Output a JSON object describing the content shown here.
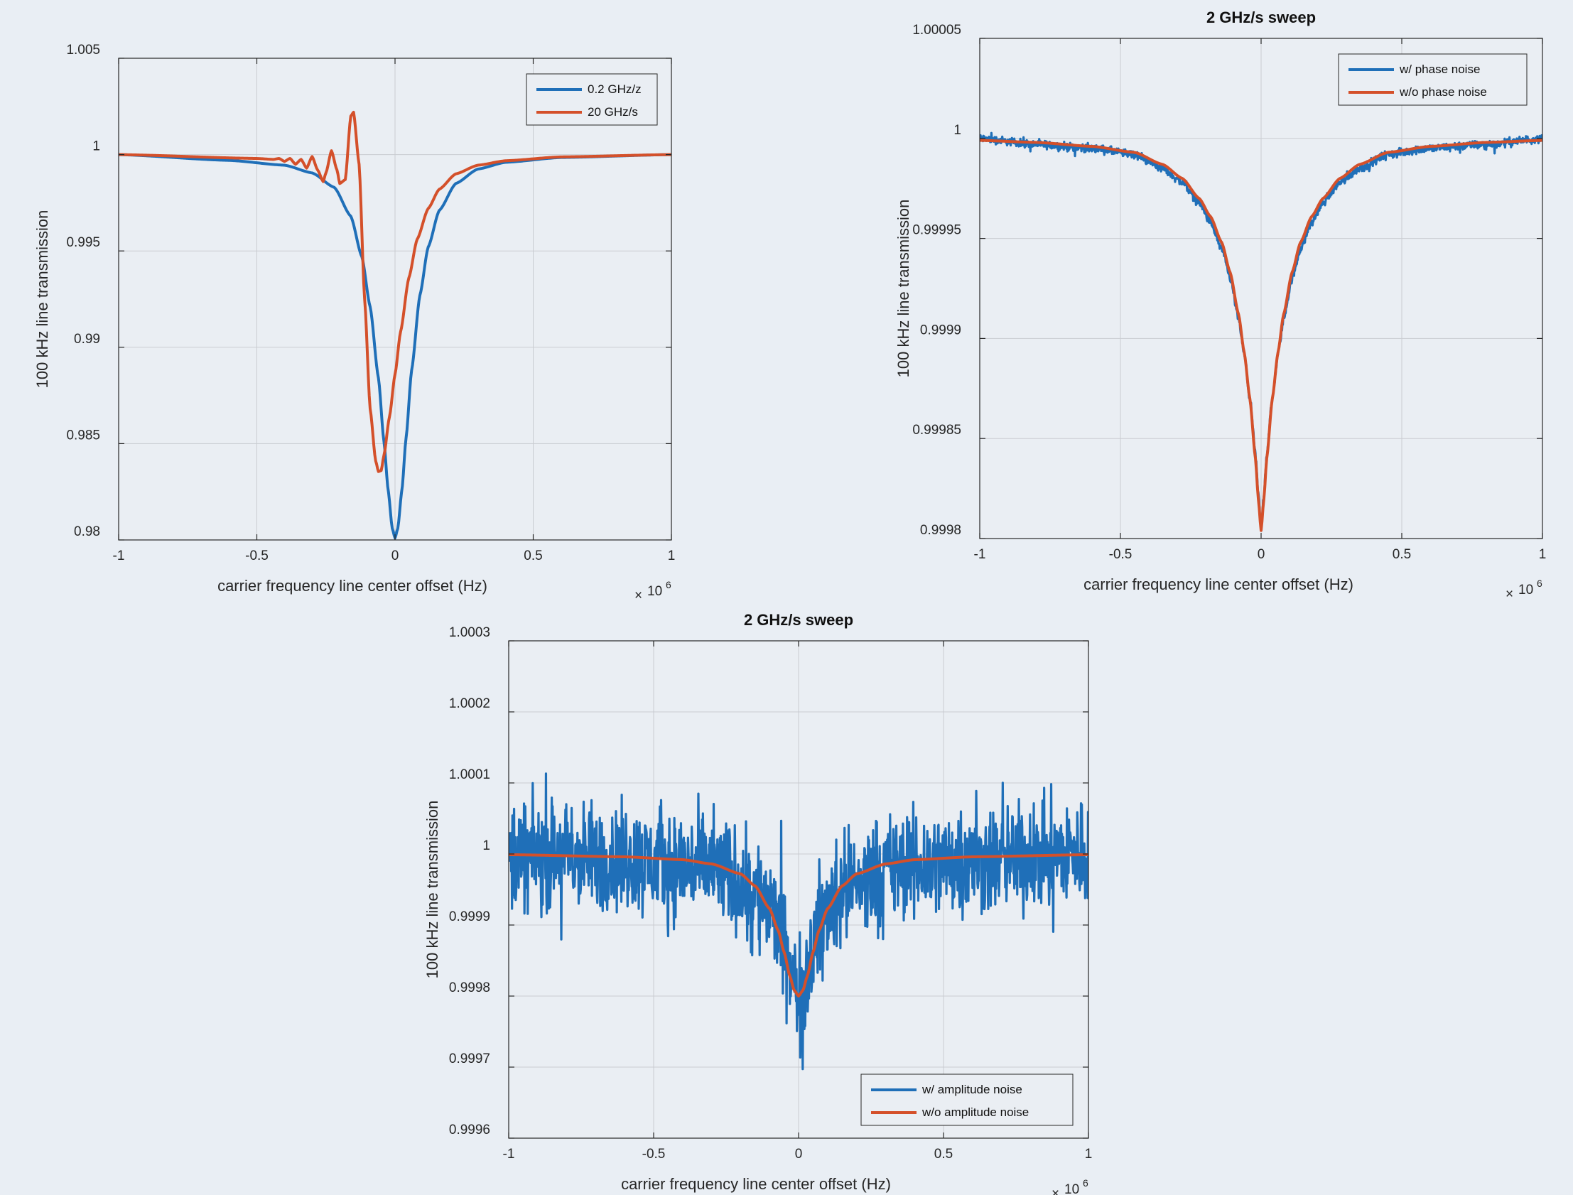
{
  "chart_data": [
    {
      "type": "line",
      "title": "",
      "xlabel": "carrier frequency line center offset (Hz)",
      "ylabel": "100 kHz line transmission",
      "x_exponent_label": "10",
      "x_exponent_power": "6",
      "xlim": [
        -1,
        1
      ],
      "ylim": [
        0.98,
        1.005
      ],
      "xticks": [
        -1,
        -0.5,
        0,
        0.5,
        1
      ],
      "xtick_labels": [
        "-1",
        "-0.5",
        "0",
        "0.5",
        "1"
      ],
      "yticks": [
        0.98,
        0.985,
        0.99,
        0.995,
        1,
        1.005
      ],
      "ytick_labels": [
        "0.98",
        "0.985",
        "0.99",
        "0.995",
        "1",
        "1.005"
      ],
      "grid": true,
      "legend_position": "top-right",
      "series": [
        {
          "name": "0.2 GHz/z",
          "color": "#1f6fb8",
          "x": [
            -1,
            -0.6,
            -0.4,
            -0.3,
            -0.22,
            -0.16,
            -0.12,
            -0.09,
            -0.06,
            -0.04,
            -0.025,
            -0.01,
            0,
            0.01,
            0.025,
            0.04,
            0.06,
            0.09,
            0.12,
            0.16,
            0.22,
            0.3,
            0.4,
            0.6,
            1
          ],
          "y": [
            1.0,
            0.9997,
            0.99945,
            0.99905,
            0.9983,
            0.9968,
            0.9947,
            0.9921,
            0.9884,
            0.9851,
            0.9826,
            0.9806,
            0.9801,
            0.9806,
            0.9826,
            0.9853,
            0.9888,
            0.9927,
            0.9952,
            0.9971,
            0.9985,
            0.99925,
            0.9996,
            0.99985,
            1.0
          ]
        },
        {
          "name": "20 GHz/s",
          "color": "#d4502a",
          "x": [
            -1,
            -0.5,
            -0.44,
            -0.42,
            -0.4,
            -0.38,
            -0.36,
            -0.34,
            -0.32,
            -0.3,
            -0.28,
            -0.26,
            -0.25,
            -0.23,
            -0.21,
            -0.2,
            -0.18,
            -0.16,
            -0.15,
            -0.13,
            -0.11,
            -0.09,
            -0.07,
            -0.06,
            -0.05,
            -0.04,
            -0.02,
            0,
            0.02,
            0.05,
            0.08,
            0.12,
            0.16,
            0.22,
            0.3,
            0.4,
            0.6,
            1
          ],
          "y": [
            1.0,
            0.9998,
            0.99975,
            0.9998,
            0.99965,
            0.9998,
            0.9995,
            0.99975,
            0.9993,
            0.9999,
            0.9992,
            0.9986,
            0.99905,
            1.0002,
            0.9992,
            0.9985,
            0.9987,
            1.002,
            1.0022,
            0.9995,
            0.9925,
            0.9868,
            0.9841,
            0.98355,
            0.9836,
            0.9844,
            0.9864,
            0.9886,
            0.9908,
            0.9936,
            0.9956,
            0.9972,
            0.9982,
            0.999,
            0.99945,
            0.99968,
            0.99988,
            1.0
          ]
        }
      ]
    },
    {
      "type": "line",
      "title": "2 GHz/s sweep",
      "xlabel": "carrier frequency line center offset (Hz)",
      "ylabel": "100 kHz line transmission",
      "x_exponent_label": "10",
      "x_exponent_power": "6",
      "xlim": [
        -1,
        1
      ],
      "ylim": [
        0.9998,
        1.00005
      ],
      "xticks": [
        -1,
        -0.5,
        0,
        0.5,
        1
      ],
      "xtick_labels": [
        "-1",
        "-0.5",
        "0",
        "0.5",
        "1"
      ],
      "yticks": [
        0.9998,
        0.99985,
        0.9999,
        0.99995,
        1,
        1.00005
      ],
      "ytick_labels": [
        "0.9998",
        "0.99985",
        "0.9999",
        "0.99995",
        "1",
        "1.00005"
      ],
      "grid": true,
      "legend_position": "top-right",
      "series": [
        {
          "name": "w/ phase noise",
          "color": "#1f6fb8",
          "x": [
            -1,
            -0.8,
            -0.6,
            -0.45,
            -0.35,
            -0.28,
            -0.22,
            -0.18,
            -0.14,
            -0.11,
            -0.08,
            -0.06,
            -0.04,
            -0.02,
            -0.01,
            0,
            0.01,
            0.02,
            0.04,
            0.06,
            0.08,
            0.11,
            0.14,
            0.18,
            0.22,
            0.28,
            0.35,
            0.45,
            0.6,
            0.8,
            1
          ],
          "y": [
            1.0,
            0.999997,
            0.999995,
            0.999992,
            0.999985,
            0.999978,
            0.999968,
            0.999958,
            0.999945,
            0.99993,
            0.99991,
            0.999892,
            0.99987,
            0.999842,
            0.999822,
            0.999805,
            0.999822,
            0.999842,
            0.99987,
            0.999892,
            0.99991,
            0.99993,
            0.999945,
            0.999958,
            0.999968,
            0.999978,
            0.999985,
            0.999992,
            0.999995,
            0.999997,
            1.0
          ],
          "noise_amplitude": 3e-06
        },
        {
          "name": "w/o phase noise",
          "color": "#d4502a",
          "x": [
            -1,
            -0.8,
            -0.6,
            -0.45,
            -0.35,
            -0.28,
            -0.22,
            -0.18,
            -0.14,
            -0.11,
            -0.08,
            -0.06,
            -0.04,
            -0.02,
            -0.01,
            0,
            0.01,
            0.02,
            0.04,
            0.06,
            0.08,
            0.11,
            0.14,
            0.18,
            0.22,
            0.28,
            0.35,
            0.45,
            0.6,
            0.8,
            1
          ],
          "y": [
            0.999999,
            0.999998,
            0.999996,
            0.999993,
            0.999987,
            0.99998,
            0.99997,
            0.999961,
            0.999948,
            0.999933,
            0.999912,
            0.999893,
            0.99987,
            0.99984,
            0.99982,
            0.999804,
            0.99982,
            0.99984,
            0.99987,
            0.999893,
            0.999912,
            0.999933,
            0.999948,
            0.999961,
            0.99997,
            0.99998,
            0.999987,
            0.999993,
            0.999996,
            0.999998,
            0.999999
          ]
        }
      ]
    },
    {
      "type": "line",
      "title": "2 GHz/s sweep",
      "xlabel": "carrier frequency line center offset (Hz)",
      "ylabel": "100 kHz line transmission",
      "x_exponent_label": "10",
      "x_exponent_power": "6",
      "xlim": [
        -1,
        1
      ],
      "ylim": [
        0.9996,
        1.0003
      ],
      "xticks": [
        -1,
        -0.5,
        0,
        0.5,
        1
      ],
      "xtick_labels": [
        "-1",
        "-0.5",
        "0",
        "0.5",
        "1"
      ],
      "yticks": [
        0.9996,
        0.9997,
        0.9998,
        0.9999,
        1,
        1.0001,
        1.0002,
        1.0003
      ],
      "ytick_labels": [
        "0.9996",
        "0.9997",
        "0.9998",
        "0.9999",
        "1",
        "1.0001",
        "1.0002",
        "1.0003"
      ],
      "grid": true,
      "legend_position": "bottom-right",
      "series": [
        {
          "name": "w/ amplitude noise",
          "color": "#1f6fb8",
          "x": [
            -1,
            -0.6,
            -0.3,
            -0.15,
            -0.08,
            -0.04,
            -0.02,
            0,
            0.02,
            0.04,
            0.08,
            0.15,
            0.3,
            0.6,
            1
          ],
          "y": [
            1.0,
            0.99999,
            0.99998,
            0.99995,
            0.99991,
            0.99986,
            0.99982,
            0.9998,
            0.99982,
            0.99986,
            0.99991,
            0.99995,
            0.99998,
            0.99999,
            1.0
          ],
          "noise_amplitude": 0.00011
        },
        {
          "name": "w/o amplitude noise",
          "color": "#d4502a",
          "x": [
            -1,
            -0.6,
            -0.4,
            -0.3,
            -0.2,
            -0.15,
            -0.1,
            -0.07,
            -0.05,
            -0.03,
            -0.015,
            0,
            0.015,
            0.03,
            0.05,
            0.07,
            0.1,
            0.15,
            0.2,
            0.3,
            0.4,
            0.6,
            1
          ],
          "y": [
            0.999999,
            0.999996,
            0.999992,
            0.999986,
            0.999972,
            0.999955,
            0.999923,
            0.999892,
            0.999862,
            0.999828,
            0.999808,
            0.9998,
            0.999808,
            0.999828,
            0.999862,
            0.999892,
            0.999923,
            0.999955,
            0.999972,
            0.999986,
            0.999992,
            0.999996,
            0.999999
          ]
        }
      ]
    }
  ]
}
